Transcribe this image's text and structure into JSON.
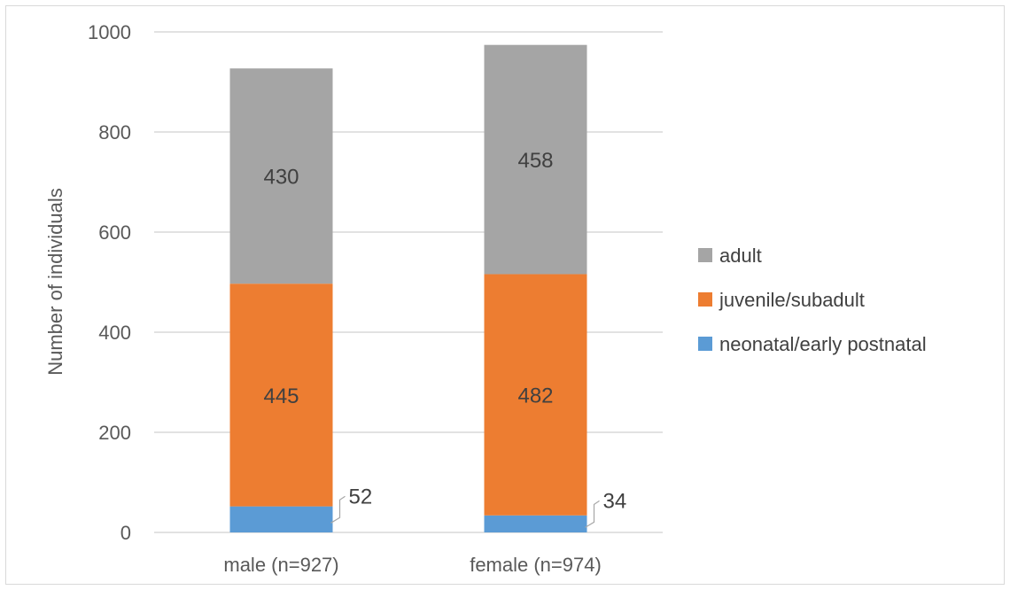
{
  "chart_data": {
    "type": "bar",
    "stacked": true,
    "categories": [
      "male (n=927)",
      "female (n=974)"
    ],
    "series": [
      {
        "name": "neonatal/early postnatal",
        "values": [
          52,
          34
        ],
        "color": "#5b9bd5"
      },
      {
        "name": "juvenile/subadult",
        "values": [
          445,
          482
        ],
        "color": "#ed7d31"
      },
      {
        "name": "adult",
        "values": [
          430,
          458
        ],
        "color": "#a5a5a5"
      }
    ],
    "title": "",
    "xlabel": "",
    "ylabel": "Number of individuals",
    "ylim": [
      0,
      1000
    ],
    "yticks": [
      0,
      200,
      400,
      600,
      800,
      1000
    ],
    "grid": true,
    "legend_position": "right",
    "legend_order": [
      "adult",
      "juvenile/subadult",
      "neonatal/early postnatal"
    ]
  }
}
